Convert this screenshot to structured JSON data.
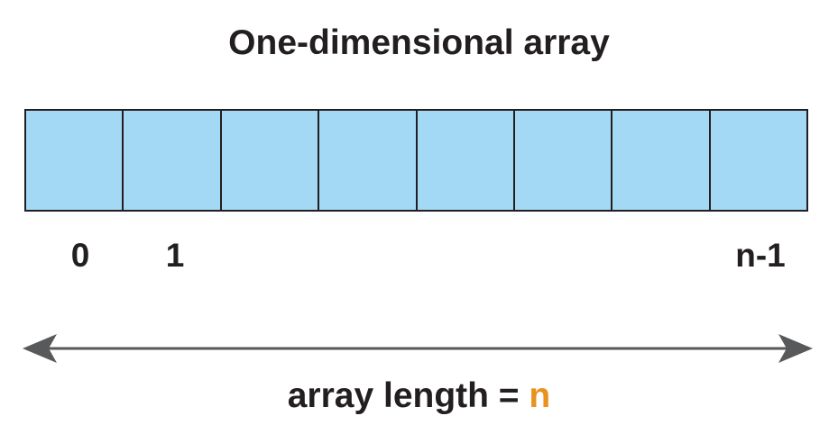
{
  "title": "One-dimensional array",
  "array": {
    "cell_count": 8,
    "cell_color": "#a3d9f5",
    "border_color": "#231f20"
  },
  "indices": {
    "first": "0",
    "second": "1",
    "last": "n-1"
  },
  "length_caption": {
    "prefix": "array length = ",
    "variable": "n",
    "variable_color": "#e8931e"
  },
  "arrow_color": "#58595b"
}
